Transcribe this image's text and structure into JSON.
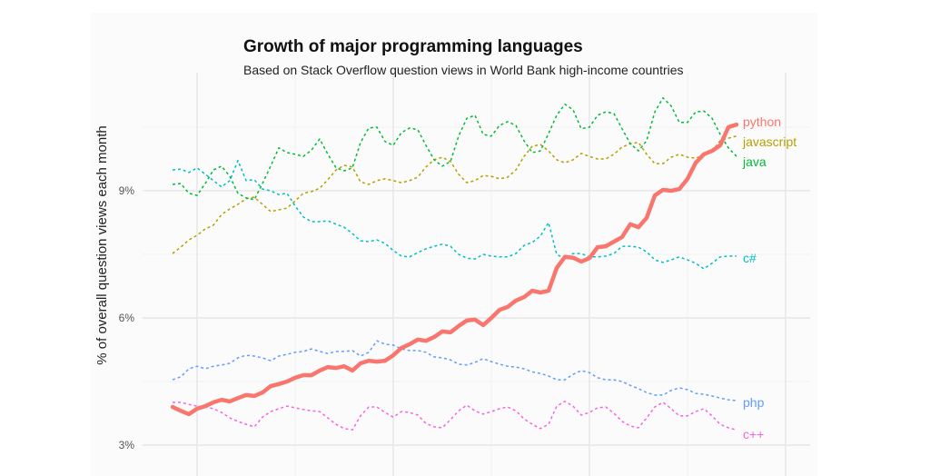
{
  "chart_data": {
    "type": "line",
    "title": "Growth of major programming languages",
    "subtitle": "Based on Stack Overflow question views in World Bank high-income countries",
    "xlabel": "",
    "ylabel": "% of overall question views each month",
    "x_unit": "month index",
    "xlim": [
      -3.3,
      78
    ],
    "ylim": [
      2.27,
      11.79
    ],
    "grid": true,
    "x_grid_major": [
      3,
      27,
      51,
      75
    ],
    "x_grid_minor": [
      15,
      39,
      63
    ],
    "y_grid_major": [
      3,
      6,
      9
    ],
    "y_grid_minor": [
      4.5,
      7.5,
      10.5
    ],
    "y_tick_labels": [
      {
        "value": 9,
        "label": "9%"
      },
      {
        "value": 6,
        "label": "6%"
      },
      {
        "value": 3,
        "label": "3%"
      }
    ],
    "legend": "direct-labels-right",
    "series": [
      {
        "name": "python",
        "color": "#F8766D",
        "style": "solid",
        "values": [
          3.9,
          3.81,
          3.73,
          3.86,
          3.92,
          4.01,
          4.07,
          4.03,
          4.11,
          4.18,
          4.16,
          4.24,
          4.39,
          4.44,
          4.5,
          4.59,
          4.65,
          4.65,
          4.76,
          4.84,
          4.82,
          4.86,
          4.76,
          4.93,
          4.99,
          4.97,
          4.99,
          5.12,
          5.29,
          5.38,
          5.49,
          5.46,
          5.55,
          5.68,
          5.66,
          5.81,
          5.94,
          5.96,
          5.83,
          6.0,
          6.19,
          6.26,
          6.41,
          6.49,
          6.64,
          6.6,
          6.64,
          7.18,
          7.44,
          7.42,
          7.33,
          7.41,
          7.67,
          7.69,
          7.8,
          7.91,
          8.21,
          8.14,
          8.36,
          8.89,
          9.02,
          9.0,
          9.04,
          9.28,
          9.66,
          9.86,
          9.94,
          10.07,
          10.5,
          10.56
        ]
      },
      {
        "name": "javascript",
        "color": "#B79F00",
        "style": "dashed",
        "values": [
          7.52,
          7.67,
          7.84,
          7.95,
          8.1,
          8.19,
          8.44,
          8.57,
          8.68,
          8.81,
          8.85,
          8.68,
          8.51,
          8.55,
          8.59,
          8.76,
          8.94,
          8.98,
          9.06,
          9.26,
          9.49,
          9.6,
          9.56,
          9.21,
          9.15,
          9.24,
          9.28,
          9.24,
          9.19,
          9.24,
          9.32,
          9.56,
          9.73,
          9.79,
          9.69,
          9.39,
          9.19,
          9.24,
          9.36,
          9.34,
          9.28,
          9.32,
          9.49,
          9.81,
          10.05,
          10.09,
          9.94,
          9.73,
          9.66,
          9.73,
          9.88,
          9.81,
          9.75,
          9.75,
          9.86,
          10.03,
          10.11,
          10.14,
          9.86,
          9.64,
          9.64,
          9.79,
          9.86,
          9.79,
          9.77,
          9.84,
          9.94,
          10.18,
          10.24,
          10.29
        ]
      },
      {
        "name": "java",
        "color": "#00BA38",
        "style": "dashed",
        "values": [
          9.15,
          9.17,
          8.94,
          8.89,
          9.17,
          9.49,
          9.58,
          9.34,
          8.94,
          8.83,
          8.79,
          9.17,
          9.58,
          10.01,
          9.9,
          9.86,
          9.81,
          9.96,
          10.22,
          9.86,
          9.54,
          9.47,
          9.54,
          10.14,
          10.48,
          10.5,
          10.16,
          10.07,
          10.37,
          10.48,
          10.44,
          10.07,
          9.73,
          9.58,
          9.69,
          10.29,
          10.71,
          10.78,
          10.33,
          10.29,
          10.54,
          10.63,
          10.54,
          10.18,
          9.9,
          9.94,
          10.35,
          10.78,
          11.04,
          10.91,
          10.46,
          10.5,
          10.78,
          10.86,
          10.82,
          10.46,
          10.11,
          9.94,
          10.18,
          10.86,
          11.19,
          11.0,
          10.61,
          10.61,
          10.86,
          10.88,
          10.71,
          10.33,
          10.01,
          9.81
        ]
      },
      {
        "name": "c#",
        "color": "#00BFC4",
        "style": "dashed",
        "values": [
          9.49,
          9.51,
          9.43,
          9.54,
          9.39,
          9.24,
          9.09,
          9.24,
          9.71,
          9.24,
          9.26,
          9.04,
          9.0,
          8.91,
          8.94,
          8.64,
          8.38,
          8.27,
          8.27,
          8.29,
          8.21,
          8.14,
          7.99,
          7.82,
          7.8,
          7.84,
          7.76,
          7.59,
          7.46,
          7.44,
          7.54,
          7.63,
          7.69,
          7.74,
          7.69,
          7.5,
          7.41,
          7.39,
          7.5,
          7.46,
          7.44,
          7.44,
          7.52,
          7.71,
          7.78,
          7.93,
          8.25,
          7.5,
          7.39,
          7.52,
          7.52,
          7.44,
          7.44,
          7.46,
          7.52,
          7.69,
          7.69,
          7.67,
          7.56,
          7.37,
          7.31,
          7.37,
          7.44,
          7.37,
          7.29,
          7.16,
          7.29,
          7.44,
          7.46,
          7.46
        ]
      },
      {
        "name": "php",
        "color": "#619CFF",
        "style": "dashed",
        "values": [
          4.54,
          4.61,
          4.8,
          4.86,
          4.8,
          4.86,
          4.89,
          4.93,
          5.06,
          5.12,
          5.1,
          5.06,
          4.99,
          5.1,
          5.14,
          5.19,
          5.21,
          5.27,
          5.21,
          5.16,
          5.21,
          5.21,
          5.23,
          5.1,
          5.19,
          5.46,
          5.38,
          5.36,
          5.27,
          5.23,
          5.23,
          5.19,
          5.08,
          5.06,
          5.01,
          4.91,
          4.89,
          4.95,
          5.04,
          4.97,
          4.91,
          4.86,
          4.84,
          4.8,
          4.73,
          4.69,
          4.63,
          4.54,
          4.54,
          4.67,
          4.76,
          4.71,
          4.59,
          4.54,
          4.54,
          4.5,
          4.41,
          4.33,
          4.24,
          4.18,
          4.18,
          4.29,
          4.35,
          4.31,
          4.22,
          4.2,
          4.16,
          4.11,
          4.07,
          4.05
        ]
      },
      {
        "name": "c++",
        "color": "#F564E3",
        "style": "dashed",
        "values": [
          4.01,
          4.01,
          3.96,
          3.92,
          3.9,
          3.86,
          3.77,
          3.64,
          3.56,
          3.49,
          3.43,
          3.66,
          3.79,
          3.86,
          3.92,
          3.88,
          3.84,
          3.81,
          3.79,
          3.64,
          3.49,
          3.39,
          3.36,
          3.69,
          3.9,
          3.9,
          3.77,
          3.66,
          3.79,
          3.77,
          3.71,
          3.51,
          3.43,
          3.41,
          3.6,
          3.81,
          3.94,
          3.81,
          3.73,
          3.79,
          3.86,
          3.9,
          3.81,
          3.62,
          3.49,
          3.39,
          3.49,
          3.92,
          4.03,
          3.92,
          3.71,
          3.77,
          3.88,
          3.9,
          3.75,
          3.56,
          3.45,
          3.41,
          3.64,
          3.9,
          4.01,
          3.86,
          3.69,
          3.69,
          3.79,
          3.86,
          3.69,
          3.49,
          3.41,
          3.36
        ]
      }
    ]
  }
}
